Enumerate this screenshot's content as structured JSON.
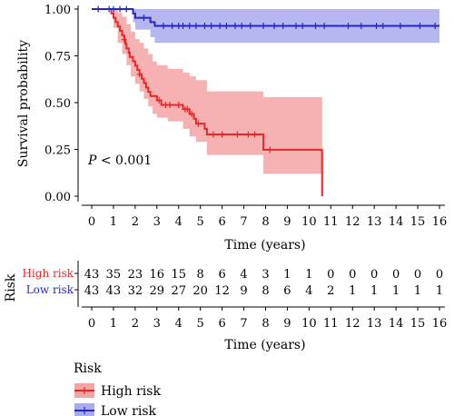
{
  "chart_data": {
    "type": "line",
    "subtype": "kaplan-meier",
    "ylabel": "Survival probability",
    "xlabel": "Time (years)",
    "xlim": [
      0,
      16
    ],
    "ylim": [
      0,
      1
    ],
    "xticks": [
      "0",
      "1",
      "2",
      "3",
      "4",
      "5",
      "6",
      "7",
      "8",
      "9",
      "10",
      "11",
      "12",
      "13",
      "14",
      "15",
      "16"
    ],
    "yticks": [
      "0.00",
      "0.25",
      "0.50",
      "0.75",
      "1.00"
    ],
    "annotation_p": "P",
    "annotation_rest": " < 0.001",
    "series": [
      {
        "name": "High risk",
        "color": "#e8262a",
        "ci_color": "#f4a5a5",
        "steps": [
          [
            0,
            1.0
          ],
          [
            0.9,
            0.977
          ],
          [
            1.0,
            0.953
          ],
          [
            1.1,
            0.93
          ],
          [
            1.2,
            0.907
          ],
          [
            1.3,
            0.884
          ],
          [
            1.4,
            0.86
          ],
          [
            1.5,
            0.837
          ],
          [
            1.55,
            0.814
          ],
          [
            1.6,
            0.79
          ],
          [
            1.7,
            0.767
          ],
          [
            1.75,
            0.744
          ],
          [
            1.9,
            0.721
          ],
          [
            2.0,
            0.698
          ],
          [
            2.1,
            0.674
          ],
          [
            2.2,
            0.651
          ],
          [
            2.3,
            0.628
          ],
          [
            2.4,
            0.605
          ],
          [
            2.5,
            0.581
          ],
          [
            2.6,
            0.558
          ],
          [
            2.7,
            0.535
          ],
          [
            3.0,
            0.512
          ],
          [
            3.2,
            0.488
          ],
          [
            4.2,
            0.465
          ],
          [
            4.5,
            0.44
          ],
          [
            4.7,
            0.414
          ],
          [
            4.8,
            0.388
          ],
          [
            5.2,
            0.36
          ],
          [
            5.3,
            0.33
          ],
          [
            7.9,
            0.248
          ],
          [
            10.6,
            0.0
          ]
        ],
        "ci_upper": [
          [
            0,
            1.0
          ],
          [
            1.0,
            1.0
          ],
          [
            1.2,
            0.98
          ],
          [
            1.4,
            0.96
          ],
          [
            1.6,
            0.92
          ],
          [
            1.8,
            0.88
          ],
          [
            2.0,
            0.84
          ],
          [
            2.2,
            0.82
          ],
          [
            2.4,
            0.79
          ],
          [
            2.6,
            0.76
          ],
          [
            2.8,
            0.72
          ],
          [
            3.0,
            0.7
          ],
          [
            3.5,
            0.68
          ],
          [
            4.2,
            0.66
          ],
          [
            4.5,
            0.64
          ],
          [
            4.8,
            0.62
          ],
          [
            5.3,
            0.56
          ],
          [
            7.9,
            0.53
          ],
          [
            10.6,
            0.53
          ]
        ],
        "ci_lower": [
          [
            0,
            1.0
          ],
          [
            1.0,
            0.9
          ],
          [
            1.2,
            0.82
          ],
          [
            1.4,
            0.76
          ],
          [
            1.6,
            0.7
          ],
          [
            1.8,
            0.64
          ],
          [
            2.0,
            0.6
          ],
          [
            2.2,
            0.56
          ],
          [
            2.4,
            0.52
          ],
          [
            2.6,
            0.48
          ],
          [
            2.8,
            0.44
          ],
          [
            3.0,
            0.42
          ],
          [
            3.5,
            0.4
          ],
          [
            4.2,
            0.36
          ],
          [
            4.5,
            0.32
          ],
          [
            4.8,
            0.29
          ],
          [
            5.3,
            0.22
          ],
          [
            7.9,
            0.12
          ],
          [
            10.6,
            0.12
          ]
        ],
        "censor_x": [
          1.5,
          2.2,
          3.1,
          3.4,
          3.6,
          4.0,
          4.3,
          4.4,
          4.6,
          4.9,
          5.6,
          6.0,
          6.7,
          7.2,
          7.5,
          8.2
        ]
      },
      {
        "name": "Low risk",
        "color": "#2727c9",
        "ci_color": "#a9a9ef",
        "steps": [
          [
            0,
            1.0
          ],
          [
            1.9,
            0.977
          ],
          [
            2.0,
            0.953
          ],
          [
            2.7,
            0.93
          ],
          [
            2.9,
            0.91
          ],
          [
            16.0,
            0.91
          ]
        ],
        "ci_upper": [
          [
            0,
            1.0
          ],
          [
            16,
            1.0
          ]
        ],
        "ci_lower": [
          [
            0,
            1.0
          ],
          [
            1.9,
            0.93
          ],
          [
            2.0,
            0.89
          ],
          [
            2.7,
            0.85
          ],
          [
            2.9,
            0.82
          ],
          [
            16,
            0.82
          ]
        ],
        "censor_x": [
          0.3,
          0.8,
          1.0,
          1.3,
          1.6,
          2.4,
          3.3,
          3.7,
          4.0,
          4.2,
          4.5,
          4.8,
          5.2,
          5.5,
          5.9,
          6.2,
          6.6,
          6.9,
          7.3,
          7.9,
          8.4,
          8.8,
          9.4,
          9.7,
          10.3,
          10.7,
          11.8,
          12.4,
          13.1,
          13.4,
          14.2,
          15.1,
          15.8
        ]
      }
    ],
    "risk_table": {
      "title": "Risk",
      "xlabel": "Time (years)",
      "rows": [
        {
          "name": "High risk",
          "color": "#e8262a",
          "values": [
            "43",
            "35",
            "23",
            "16",
            "15",
            "8",
            "6",
            "4",
            "3",
            "1",
            "1",
            "0",
            "0",
            "0",
            "0",
            "0",
            "0"
          ]
        },
        {
          "name": "Low risk",
          "color": "#2727c9",
          "values": [
            "43",
            "43",
            "32",
            "29",
            "27",
            "20",
            "12",
            "9",
            "8",
            "6",
            "4",
            "2",
            "1",
            "1",
            "1",
            "1",
            "1"
          ]
        }
      ]
    },
    "legend": {
      "title": "Risk",
      "placement": "bottom-left",
      "entries": [
        "High risk",
        "Low risk"
      ]
    }
  }
}
